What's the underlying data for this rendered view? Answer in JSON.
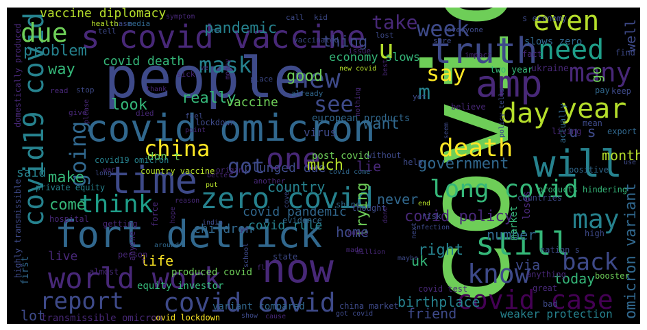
{
  "background": "#000000",
  "palette": [
    "#440154",
    "#482878",
    "#3e4a89",
    "#31688e",
    "#26828e",
    "#1f9e89",
    "#35b779",
    "#6ece58",
    "#b5de2b",
    "#fde725"
  ],
  "words": [
    {
      "text": "covid",
      "color": "#6ece58"
    },
    {
      "text": "people",
      "color": "#3e4a89"
    },
    {
      "text": "s covid vaccine",
      "color": "#482878"
    },
    {
      "text": "fort detrick",
      "color": "#31688e"
    },
    {
      "text": "covid omicron",
      "color": "#31688e"
    },
    {
      "text": "time",
      "color": "#3e4a89"
    },
    {
      "text": "now",
      "color": "#482878"
    },
    {
      "text": "truth",
      "color": "#3e4a89"
    },
    {
      "text": "amp",
      "color": "#482878"
    },
    {
      "text": "covid19 covid",
      "color": "#26828e"
    },
    {
      "text": "zero covid",
      "color": "#26828e"
    },
    {
      "text": "world work",
      "color": "#482878"
    },
    {
      "text": "covid covid",
      "color": "#3e4a89"
    },
    {
      "text": "covid case",
      "color": "#440154"
    },
    {
      "text": "long covid",
      "color": "#35b779"
    },
    {
      "text": "will",
      "color": "#26828e"
    },
    {
      "text": "still",
      "color": "#35b779"
    },
    {
      "text": "one",
      "color": "#482878"
    },
    {
      "text": "death",
      "color": "#fde725"
    },
    {
      "text": "day",
      "color": "#b5de2b"
    },
    {
      "text": "year",
      "color": "#b5de2b"
    },
    {
      "text": "even",
      "color": "#b5de2b"
    },
    {
      "text": "need",
      "color": "#1f9e89"
    },
    {
      "text": "many",
      "color": "#482878"
    },
    {
      "text": "due",
      "color": "#6ece58"
    },
    {
      "text": "week",
      "color": "#3e4a89"
    },
    {
      "text": "think",
      "color": "#1f9e89"
    },
    {
      "text": "china",
      "color": "#fde725"
    },
    {
      "text": "going",
      "color": "#31688e"
    },
    {
      "text": "know",
      "color": "#3e4a89"
    },
    {
      "text": "report",
      "color": "#3e4a89"
    },
    {
      "text": "may",
      "color": "#26828e"
    },
    {
      "text": "back",
      "color": "#3e4a89"
    },
    {
      "text": "new",
      "color": "#3e4a89"
    },
    {
      "text": "say",
      "color": "#fde725"
    },
    {
      "text": "mask",
      "color": "#26828e"
    },
    {
      "text": "see",
      "color": "#3e4a89"
    },
    {
      "text": "got",
      "color": "#3e4a89"
    },
    {
      "text": "u",
      "color": "#b5de2b"
    },
    {
      "text": "m",
      "color": "#26828e"
    },
    {
      "text": "omicron variant",
      "color": "#31688e"
    },
    {
      "text": "covid policy",
      "color": "#482878"
    },
    {
      "text": "government",
      "color": "#31688e"
    },
    {
      "text": "pandemic",
      "color": "#26828e"
    },
    {
      "text": "vaccine diplomacy",
      "color": "#b5de2b"
    },
    {
      "text": "covid death",
      "color": "#35b779"
    },
    {
      "text": "economy slows",
      "color": "#35b779"
    },
    {
      "text": "plunged due",
      "color": "#3e4a89"
    },
    {
      "text": "covid pandemic",
      "color": "#31688e"
    },
    {
      "text": "birthplace",
      "color": "#26828e"
    },
    {
      "text": "friend",
      "color": "#3e4a89"
    },
    {
      "text": "trying",
      "color": "#6ece58"
    },
    {
      "text": "want",
      "color": "#31688e"
    },
    {
      "text": "really",
      "color": "#35b779"
    },
    {
      "text": "make",
      "color": "#35b779"
    },
    {
      "text": "come",
      "color": "#35b779"
    },
    {
      "text": "take",
      "color": "#482878"
    },
    {
      "text": "way",
      "color": "#35b779"
    },
    {
      "text": "problem",
      "color": "#26828e"
    },
    {
      "text": "thing",
      "color": "#3e4a89"
    },
    {
      "text": "good",
      "color": "#6ece58"
    },
    {
      "text": "look",
      "color": "#35b779"
    },
    {
      "text": "vaccine",
      "color": "#6ece58"
    },
    {
      "text": "much",
      "color": "#b5de2b"
    },
    {
      "text": "country",
      "color": "#26828e"
    },
    {
      "text": "lie",
      "color": "#482878"
    },
    {
      "text": "never",
      "color": "#31688e"
    },
    {
      "text": "home",
      "color": "#3e4a89"
    },
    {
      "text": "right",
      "color": "#26828e"
    },
    {
      "text": "number",
      "color": "#31688e"
    },
    {
      "text": "today",
      "color": "#35b779"
    },
    {
      "text": "uk",
      "color": "#35b779"
    },
    {
      "text": "via",
      "color": "#3e4a89"
    },
    {
      "text": "month",
      "color": "#b5de2b"
    },
    {
      "text": "well",
      "color": "#3e4a89"
    },
    {
      "text": "go",
      "color": "#6ece58"
    },
    {
      "text": "u s",
      "color": "#3e4a89"
    },
    {
      "text": "life",
      "color": "#fde725"
    },
    {
      "text": "children",
      "color": "#31688e"
    },
    {
      "text": "covid rule",
      "color": "#26828e"
    },
    {
      "text": "said",
      "color": "#26828e"
    },
    {
      "text": "live",
      "color": "#482878"
    },
    {
      "text": "lot",
      "color": "#3e4a89"
    },
    {
      "text": "first",
      "color": "#31688e"
    },
    {
      "text": "weaker protection",
      "color": "#26828e"
    },
    {
      "text": "variant compared",
      "color": "#31688e"
    },
    {
      "text": "covid lockdown",
      "color": "#fde725"
    },
    {
      "text": "transmissible omicron",
      "color": "#482878"
    },
    {
      "text": "equity investor",
      "color": "#35b779"
    },
    {
      "text": "produced covid",
      "color": "#6ece58"
    },
    {
      "text": "don t",
      "color": "#6ece58"
    },
    {
      "text": "covid19 omicron",
      "color": "#26828e"
    },
    {
      "text": "private equity",
      "color": "#26828e"
    },
    {
      "text": "country vaccine",
      "color": "#b5de2b"
    },
    {
      "text": "european products",
      "color": "#31688e"
    },
    {
      "text": "post covid",
      "color": "#6ece58"
    },
    {
      "text": "new covid",
      "color": "#b5de2b"
    },
    {
      "text": "two year",
      "color": "#35b779"
    },
    {
      "text": "ukraine",
      "color": "#482878"
    },
    {
      "text": "slows zero",
      "color": "#31688e"
    },
    {
      "text": "loses",
      "color": "#482878"
    },
    {
      "text": "market",
      "color": "#35b779"
    },
    {
      "text": "virus",
      "color": "#3e4a89"
    },
    {
      "text": "covid come",
      "color": "#31688e"
    },
    {
      "text": "covid test",
      "color": "#482878"
    },
    {
      "text": "got covid",
      "color": "#3e4a89"
    },
    {
      "text": "china market",
      "color": "#3e4a89"
    },
    {
      "text": "products hindering",
      "color": "#35b779"
    },
    {
      "text": "positive",
      "color": "#31688e"
    },
    {
      "text": "living",
      "color": "#482878"
    },
    {
      "text": "countries",
      "color": "#3e4a89"
    },
    {
      "text": "risk",
      "color": "#3e4a89"
    },
    {
      "text": "help",
      "color": "#3e4a89"
    },
    {
      "text": "without",
      "color": "#3e4a89"
    },
    {
      "text": "shine",
      "color": "#31688e"
    },
    {
      "text": "another",
      "color": "#482878"
    },
    {
      "text": "origin",
      "color": "#482878"
    },
    {
      "text": "better",
      "color": "#482878"
    },
    {
      "text": "put",
      "color": "#b5de2b"
    },
    {
      "text": "reason",
      "color": "#482878"
    },
    {
      "text": "india",
      "color": "#3e4a89"
    },
    {
      "text": "ye",
      "color": "#482878"
    },
    {
      "text": "force",
      "color": "#482878"
    },
    {
      "text": "hope",
      "color": "#482878"
    },
    {
      "text": "evidence",
      "color": "#31688e"
    },
    {
      "text": "thought",
      "color": "#3e4a89"
    },
    {
      "text": "end",
      "color": "#b5de2b"
    },
    {
      "text": "done",
      "color": "#482878"
    },
    {
      "text": "infection",
      "color": "#3e4a89"
    },
    {
      "text": "guess",
      "color": "#482878"
    },
    {
      "text": "made",
      "color": "#482878"
    },
    {
      "text": "million",
      "color": "#482878"
    },
    {
      "text": "next",
      "color": "#3e4a89"
    },
    {
      "text": "maybe",
      "color": "#3e4a89"
    },
    {
      "text": "state",
      "color": "#3e4a89"
    },
    {
      "text": "school",
      "color": "#3e4a89"
    },
    {
      "text": "flu",
      "color": "#482878"
    },
    {
      "text": "show",
      "color": "#3e4a89"
    },
    {
      "text": "cause",
      "color": "#482878"
    },
    {
      "text": "cover",
      "color": "#3e4a89"
    },
    {
      "text": "almost",
      "color": "#482878"
    },
    {
      "text": "person",
      "color": "#482878"
    },
    {
      "text": "anyone",
      "color": "#482878"
    },
    {
      "text": "around",
      "color": "#31688e"
    },
    {
      "text": "t",
      "color": "#482878"
    },
    {
      "text": "war",
      "color": "#482878"
    },
    {
      "text": "long",
      "color": "#3e4a89"
    },
    {
      "text": "getting",
      "color": "#482878"
    },
    {
      "text": "hospital",
      "color": "#482878"
    },
    {
      "text": "highly transmissible",
      "color": "#3e4a89"
    },
    {
      "text": "domestically produced",
      "color": "#482878"
    },
    {
      "text": "nation s",
      "color": "#3e4a89"
    },
    {
      "text": "anything",
      "color": "#482878"
    },
    {
      "text": "great",
      "color": "#482878"
    },
    {
      "text": "booster",
      "color": "#6ece58"
    },
    {
      "text": "bad",
      "color": "#3e4a89"
    },
    {
      "text": "high",
      "color": "#3e4a89"
    },
    {
      "text": "use",
      "color": "#3e4a89"
    },
    {
      "text": "export",
      "color": "#31688e"
    },
    {
      "text": "mean",
      "color": "#3e4a89"
    },
    {
      "text": "actually",
      "color": "#31688e"
    },
    {
      "text": "pay",
      "color": "#31688e"
    },
    {
      "text": "keep",
      "color": "#3e4a89"
    },
    {
      "text": "find",
      "color": "#3e4a89"
    },
    {
      "text": "fact",
      "color": "#482878"
    },
    {
      "text": "s economy",
      "color": "#3e4a89"
    },
    {
      "text": "everyone",
      "color": "#3e4a89"
    },
    {
      "text": "impact",
      "color": "#482878"
    },
    {
      "text": "sure",
      "color": "#3e4a89"
    },
    {
      "text": "issue",
      "color": "#482878"
    },
    {
      "text": "lost",
      "color": "#3e4a89"
    },
    {
      "text": "vaccinated",
      "color": "#3e4a89"
    },
    {
      "text": "kid",
      "color": "#3e4a89"
    },
    {
      "text": "call",
      "color": "#3e4a89"
    },
    {
      "text": "symptom",
      "color": "#482878"
    },
    {
      "text": "case",
      "color": "#3e4a89"
    },
    {
      "text": "media",
      "color": "#31688e"
    },
    {
      "text": "health",
      "color": "#b5de2b"
    },
    {
      "text": "tell",
      "color": "#3e4a89"
    },
    {
      "text": "re",
      "color": "#31688e"
    },
    {
      "text": "sick",
      "color": "#482878"
    },
    {
      "text": "ve",
      "color": "#482878"
    },
    {
      "text": "place",
      "color": "#3e4a89"
    },
    {
      "text": "money",
      "color": "#482878"
    },
    {
      "text": "already",
      "color": "#31688e"
    },
    {
      "text": "thank",
      "color": "#482878"
    },
    {
      "text": "stop",
      "color": "#3e4a89"
    },
    {
      "text": "read",
      "color": "#482878"
    },
    {
      "text": "give",
      "color": "#482878"
    },
    {
      "text": "died",
      "color": "#482878"
    },
    {
      "text": "feel",
      "color": "#3e4a89"
    },
    {
      "text": "please",
      "color": "#482878"
    },
    {
      "text": "lockdown",
      "color": "#3e4a89"
    },
    {
      "text": "point",
      "color": "#482878"
    },
    {
      "text": "believe",
      "color": "#482878"
    },
    {
      "text": "yet",
      "color": "#3e4a89"
    },
    {
      "text": "seem",
      "color": "#3e4a89"
    },
    {
      "text": "nothing",
      "color": "#482878"
    },
    {
      "text": "policy tells",
      "color": "#3e4a89"
    },
    {
      "text": "best",
      "color": "#482878"
    }
  ]
}
